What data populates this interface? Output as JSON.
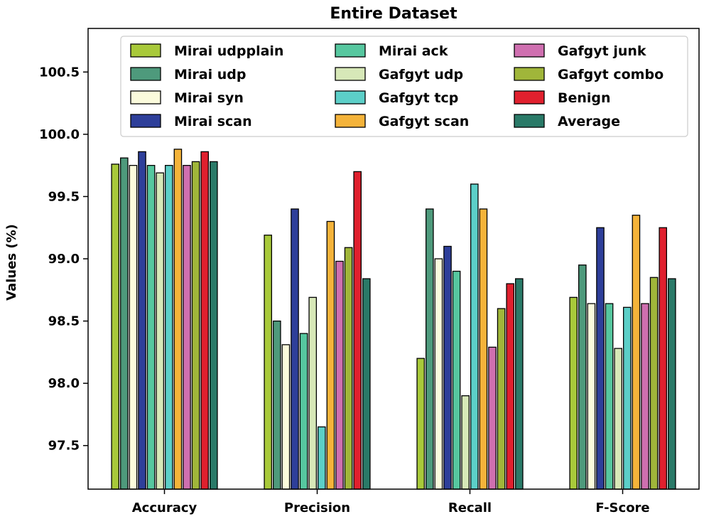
{
  "chart_data": {
    "type": "bar",
    "title": "Entire Dataset",
    "xlabel": "",
    "ylabel": "Values (%)",
    "ylim": [
      97.15,
      100.85
    ],
    "yticks": [
      "97.5",
      "98.0",
      "98.5",
      "99.0",
      "99.5",
      "100.0",
      "100.5"
    ],
    "categories": [
      "Accuracy",
      "Precision",
      "Recall",
      "F-Score"
    ],
    "legend_position": "top-right",
    "series": [
      {
        "name": "Mirai udpplain",
        "color": "#a8c93a",
        "values": [
          99.76,
          99.19,
          98.2,
          98.69
        ]
      },
      {
        "name": "Mirai udp",
        "color": "#4e9a7c",
        "values": [
          99.81,
          98.5,
          99.4,
          98.95
        ]
      },
      {
        "name": "Mirai syn",
        "color": "#fbfbdc",
        "values": [
          99.75,
          98.31,
          99.0,
          98.64
        ]
      },
      {
        "name": "Mirai scan",
        "color": "#2e3f9a",
        "values": [
          99.86,
          99.4,
          99.1,
          99.25
        ]
      },
      {
        "name": "Mirai ack",
        "color": "#56c79f",
        "values": [
          99.75,
          98.4,
          98.9,
          98.64
        ]
      },
      {
        "name": "Gafgyt udp",
        "color": "#d7e8b8",
        "values": [
          99.69,
          98.69,
          97.9,
          98.28
        ]
      },
      {
        "name": "Gafgyt tcp",
        "color": "#5ccfc8",
        "values": [
          99.75,
          97.65,
          99.6,
          98.61
        ]
      },
      {
        "name": "Gafgyt scan",
        "color": "#f4b33a",
        "values": [
          99.88,
          99.3,
          99.4,
          99.35
        ]
      },
      {
        "name": "Gafgyt junk",
        "color": "#cf6fb0",
        "values": [
          99.75,
          98.98,
          98.29,
          98.64
        ]
      },
      {
        "name": "Gafgyt combo",
        "color": "#a0b63a",
        "values": [
          99.78,
          99.09,
          98.6,
          98.85
        ]
      },
      {
        "name": "Benign",
        "color": "#e0202e",
        "values": [
          99.86,
          99.7,
          98.8,
          99.25
        ]
      },
      {
        "name": "Average",
        "color": "#2a7a68",
        "values": [
          99.78,
          98.84,
          98.84,
          98.84
        ]
      }
    ]
  }
}
